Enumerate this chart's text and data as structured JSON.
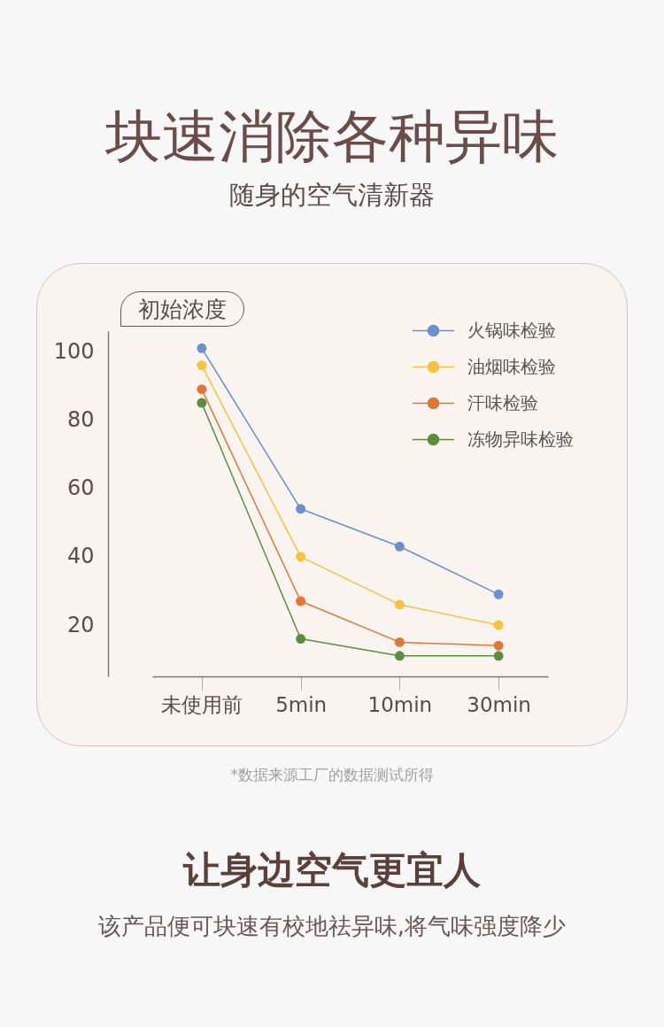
{
  "chart_data": {
    "type": "line",
    "title": "块速消除各种异味",
    "subtitle": "随身的空气清新器",
    "ylabel": "初始浓度",
    "categories": [
      "未使用前",
      "5min",
      "10min",
      "30min"
    ],
    "series": [
      {
        "name": "火锅味检验",
        "color": "#6d8fcf",
        "values": [
          101,
          54,
          43,
          29
        ]
      },
      {
        "name": "油烟味检验",
        "color": "#f6c143",
        "values": [
          96,
          40,
          26,
          20
        ]
      },
      {
        "name": "汗味检验",
        "color": "#e0763a",
        "values": [
          89,
          27,
          15,
          14
        ]
      },
      {
        "name": "冻物异味检验",
        "color": "#5e8c3f",
        "values": [
          85,
          16,
          11,
          11
        ]
      }
    ],
    "ylim": [
      5,
      106
    ],
    "yticks": [
      20,
      40,
      60,
      80,
      100
    ],
    "legend": "top right",
    "marker": "circle",
    "line_style": "solid",
    "annotations": [
      "*数据来源工厂的数据测试所得",
      "让身边空气更宜人",
      "该产品便可块速有校地祛异味,将气味强度降少"
    ]
  }
}
